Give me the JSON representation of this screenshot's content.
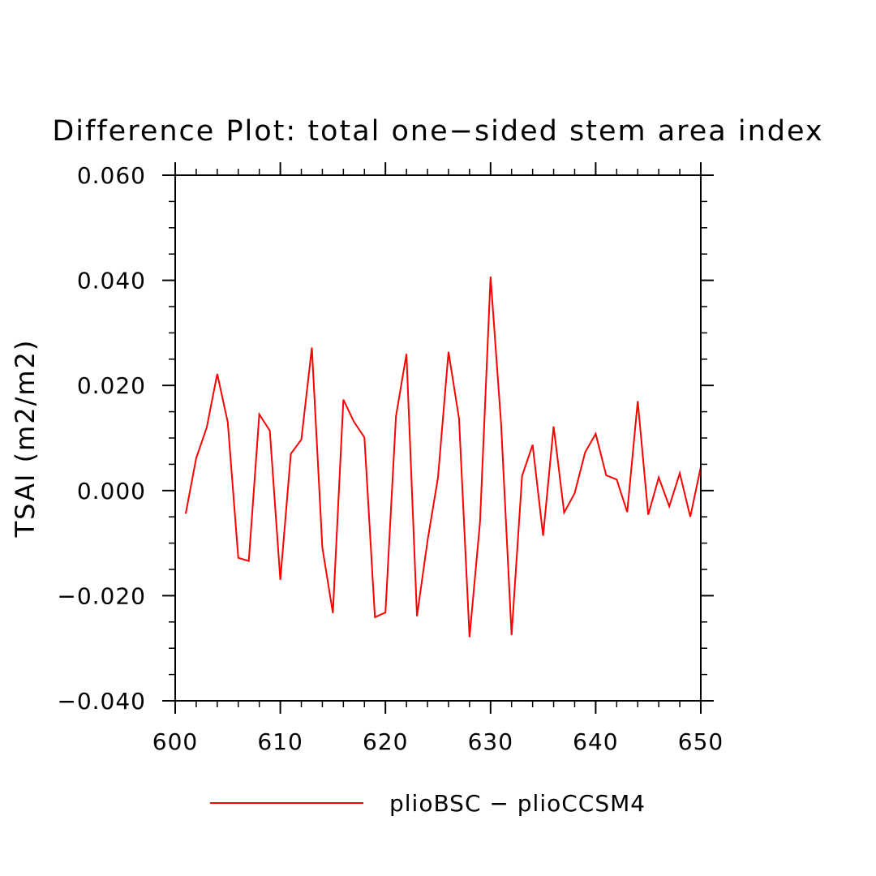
{
  "chart_data": {
    "type": "line",
    "title": "Difference Plot: total one−sided stem area index",
    "xlabel": "",
    "ylabel": "TSAI  (m2/m2)",
    "xlim": [
      600,
      650
    ],
    "ylim": [
      -0.04,
      0.06
    ],
    "x_ticks": [
      600,
      610,
      620,
      630,
      640,
      650
    ],
    "x_tick_labels": [
      "600",
      "610",
      "620",
      "630",
      "640",
      "650"
    ],
    "y_ticks": [
      -0.04,
      -0.02,
      0.0,
      0.02,
      0.04,
      0.06
    ],
    "y_tick_labels": [
      "−0.040",
      "−0.020",
      "0.000",
      "0.020",
      "0.040",
      "0.060"
    ],
    "grid": false,
    "legend_position": "bottom",
    "series": [
      {
        "name": "plioBSC − plioCCSM4",
        "color": "#ff0000",
        "x": [
          601,
          602,
          603,
          604,
          605,
          606,
          607,
          608,
          609,
          610,
          611,
          612,
          613,
          614,
          615,
          616,
          617,
          618,
          619,
          620,
          621,
          622,
          623,
          624,
          625,
          626,
          627,
          628,
          629,
          630,
          631,
          632,
          633,
          634,
          635,
          636,
          637,
          638,
          639,
          640,
          641,
          642,
          643,
          644,
          645,
          646,
          647,
          648,
          649,
          650
        ],
        "y": [
          -0.0044,
          0.0062,
          0.012,
          0.0222,
          0.013,
          -0.0128,
          -0.0134,
          0.0145,
          0.0114,
          -0.017,
          0.007,
          0.0097,
          0.0272,
          -0.0109,
          -0.0233,
          0.0173,
          0.0131,
          0.0101,
          -0.0241,
          -0.0232,
          0.0141,
          0.026,
          -0.0239,
          -0.0096,
          0.0025,
          0.0264,
          0.0137,
          -0.0279,
          -0.0059,
          0.0407,
          0.0128,
          -0.0275,
          0.0028,
          0.0087,
          -0.0086,
          0.0122,
          -0.0042,
          -0.0005,
          0.0073,
          0.0108,
          0.0029,
          0.0021,
          -0.0041,
          0.017,
          -0.0046,
          0.0025,
          -0.003,
          0.0033,
          -0.005,
          0.0045
        ]
      }
    ]
  }
}
